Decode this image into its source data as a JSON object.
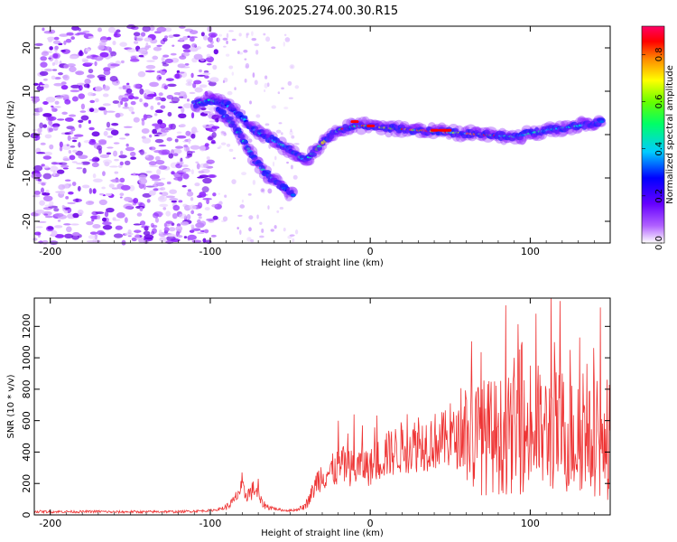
{
  "chart_data": [
    {
      "type": "heatmap",
      "title": "S196.2025.274.00.30.R15",
      "xlabel": "Height of straight line (km)",
      "ylabel": "Frequency (Hz)",
      "xlim": [
        -210,
        150
      ],
      "ylim": [
        -25,
        25
      ],
      "xticks": [
        -200,
        -100,
        0,
        100
      ],
      "yticks": [
        -20,
        -10,
        0,
        10,
        20
      ],
      "colorbar": {
        "label": "Normalized spectral amplitude",
        "range": [
          0,
          0.92
        ],
        "ticks": [
          0.0,
          0.2,
          0.4,
          0.6,
          0.8
        ],
        "tick_labels": [
          "0.0",
          "0.2",
          "0.4",
          "0.6",
          "0.8"
        ],
        "colors": [
          "#ffffff",
          "#9900ff",
          "#0000ff",
          "#00ffff",
          "#00ff00",
          "#ffff00",
          "#ff7f00",
          "#ff0000",
          "#ff00cc"
        ]
      },
      "traces": [
        {
          "name": "upper branch",
          "points": [
            [
              -110,
              7
            ],
            [
              -100,
              8
            ],
            [
              -90,
              7
            ],
            [
              -80,
              4
            ],
            [
              -72,
              1
            ],
            [
              -62,
              -1
            ],
            [
              -52,
              -3
            ],
            [
              -45,
              -5
            ],
            [
              -40,
              -6
            ],
            [
              -30,
              -2
            ],
            [
              -20,
              1
            ],
            [
              -10,
              2
            ],
            [
              0,
              2
            ],
            [
              10,
              1.5
            ],
            [
              30,
              1
            ],
            [
              50,
              0.5
            ],
            [
              70,
              0
            ],
            [
              90,
              -0.5
            ],
            [
              110,
              1
            ],
            [
              130,
              2
            ],
            [
              145,
              3
            ]
          ]
        },
        {
          "name": "lower branch",
          "points": [
            [
              -95,
              6
            ],
            [
              -85,
              2
            ],
            [
              -78,
              -2
            ],
            [
              -72,
              -6
            ],
            [
              -65,
              -9
            ],
            [
              -55,
              -12
            ],
            [
              -48,
              -14
            ]
          ]
        }
      ]
    },
    {
      "type": "line",
      "title": "",
      "xlabel": "Height of straight line (km)",
      "ylabel": "SNR (10 * v/v)",
      "xlim": [
        -210,
        150
      ],
      "ylim": [
        0,
        1380
      ],
      "xticks": [
        -200,
        -100,
        0,
        100
      ],
      "yticks": [
        0,
        200,
        400,
        600,
        800,
        1000,
        1200
      ],
      "color": "#ee3333",
      "series": [
        {
          "name": "SNR",
          "x": [
            -210,
            -200,
            -190,
            -180,
            -170,
            -160,
            -150,
            -140,
            -130,
            -120,
            -110,
            -100,
            -95,
            -90,
            -85,
            -82,
            -80,
            -78,
            -75,
            -72,
            -70,
            -68,
            -65,
            -60,
            -55,
            -50,
            -45,
            -40,
            -36,
            -33,
            -30,
            -25,
            -20,
            -15,
            -10,
            -5,
            0,
            5,
            10,
            20,
            30,
            40,
            50,
            60,
            70,
            80,
            90,
            100,
            110,
            112,
            115,
            120,
            130,
            140,
            145,
            150
          ],
          "mean": [
            22,
            20,
            21,
            20,
            22,
            18,
            20,
            19,
            21,
            20,
            24,
            28,
            35,
            50,
            90,
            150,
            160,
            130,
            140,
            170,
            120,
            80,
            55,
            40,
            30,
            28,
            35,
            60,
            150,
            220,
            260,
            270,
            300,
            310,
            290,
            320,
            300,
            350,
            380,
            430,
            450,
            470,
            480,
            490,
            500,
            500,
            510,
            520,
            520,
            540,
            540,
            520,
            480,
            460,
            400,
            350
          ],
          "peaks": [
            [
              -80,
              270
            ],
            [
              -70,
              230
            ],
            [
              -33,
              270
            ],
            [
              -20,
              600
            ],
            [
              -10,
              640
            ],
            [
              -5,
              570
            ],
            [
              10,
              520
            ],
            [
              30,
              620
            ],
            [
              50,
              710
            ],
            [
              60,
              750
            ],
            [
              70,
              800
            ],
            [
              80,
              650
            ],
            [
              90,
              1000
            ],
            [
              95,
              1100
            ],
            [
              100,
              950
            ],
            [
              105,
              950
            ],
            [
              113,
              1380
            ],
            [
              115,
              1100
            ],
            [
              120,
              900
            ],
            [
              125,
              1050
            ],
            [
              130,
              800
            ],
            [
              133,
              900
            ],
            [
              140,
              850
            ],
            [
              144,
              1320
            ],
            [
              148,
              860
            ]
          ]
        }
      ]
    }
  ]
}
